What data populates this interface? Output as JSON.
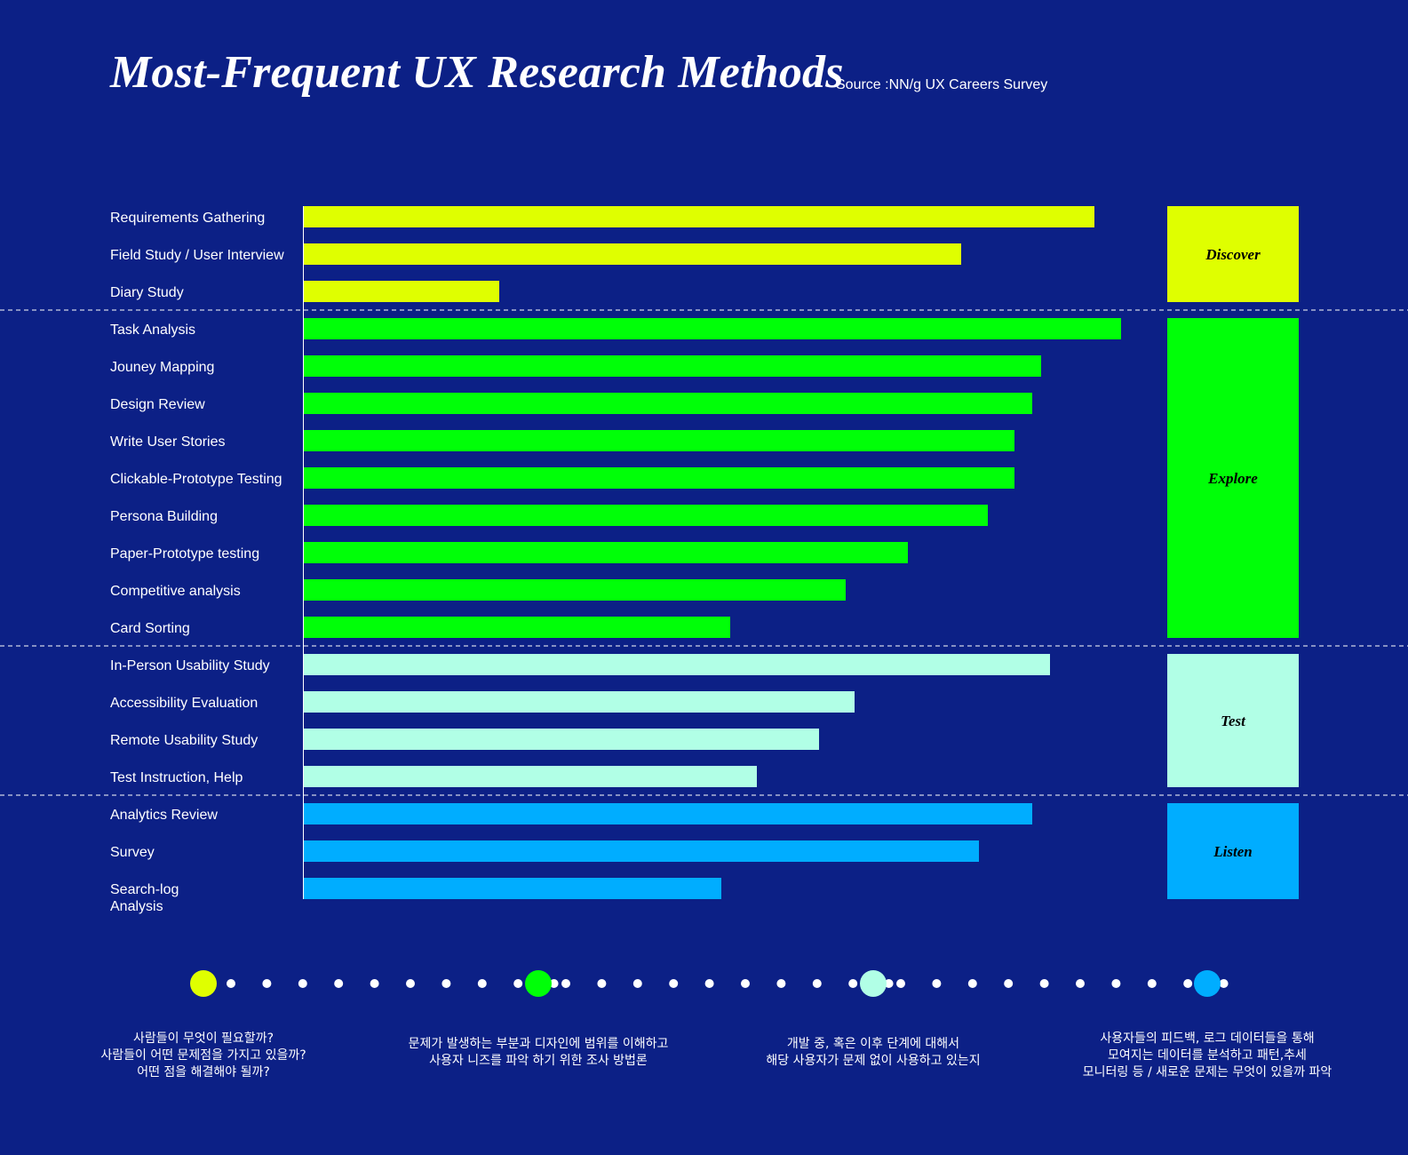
{
  "header": {
    "title": "Most-Frequent UX Research Methods",
    "source": "Source :NN/g UX Careers Survey"
  },
  "chart_data": {
    "type": "bar",
    "orientation": "horizontal",
    "title": "Most-Frequent UX Research Methods",
    "xlabel": "",
    "ylabel": "",
    "xlim": [
      0,
      100
    ],
    "grid": false,
    "groups": [
      {
        "name": "Discover",
        "color": "#dfff00",
        "categories": [
          "Requirements Gathering",
          "Field Study / User Interview",
          "Diary Study"
        ],
        "values": [
          89,
          74,
          22
        ]
      },
      {
        "name": "Explore",
        "color": "#00ff08",
        "categories": [
          "Task Analysis",
          "Jouney Mapping",
          "Design Review",
          "Write User Stories",
          "Clickable-Prototype Testing",
          "Persona Building",
          "Paper-Prototype testing",
          "Competitive analysis",
          "Card Sorting"
        ],
        "values": [
          92,
          83,
          82,
          80,
          80,
          77,
          68,
          61,
          48
        ]
      },
      {
        "name": "Test",
        "color": "#b1ffe6",
        "categories": [
          "In-Person Usability Study",
          "Accessibility Evaluation",
          "Remote Usability Study",
          "Test Instruction, Help"
        ],
        "values": [
          84,
          62,
          58,
          51
        ]
      },
      {
        "name": "Listen",
        "color": "#00adff",
        "categories": [
          "Analytics Review",
          "Survey",
          "Search-log\nAnalysis"
        ],
        "values": [
          82,
          76,
          47
        ]
      }
    ]
  },
  "timeline": {
    "dot_color": "#ffffff",
    "small_dots_between": 8,
    "stages": [
      {
        "color": "#dfff00",
        "description": "사람들이 무엇이 필요할까?\n사람들이 어떤 문제점을 가지고 있을까?\n어떤 점을 해결해야 될까?"
      },
      {
        "color": "#00ff08",
        "description": "문제가 발생하는 부분과 디자인에 범위를 이해하고\n사용자 니즈를 파악 하기 위한 조사 방법론"
      },
      {
        "color": "#b1ffe6",
        "description": "개발 중, 혹은 이후 단계에 대해서\n해당 사용자가 문제 없이 사용하고 있는지"
      },
      {
        "color": "#00adff",
        "description": "사용자들의 피드백, 로그 데이터들을 통해\n모여지는 데이터를 분석하고 패턴,추세\n모니터링 등 / 새로운 문제는 무엇이 있을까 파악"
      }
    ]
  }
}
